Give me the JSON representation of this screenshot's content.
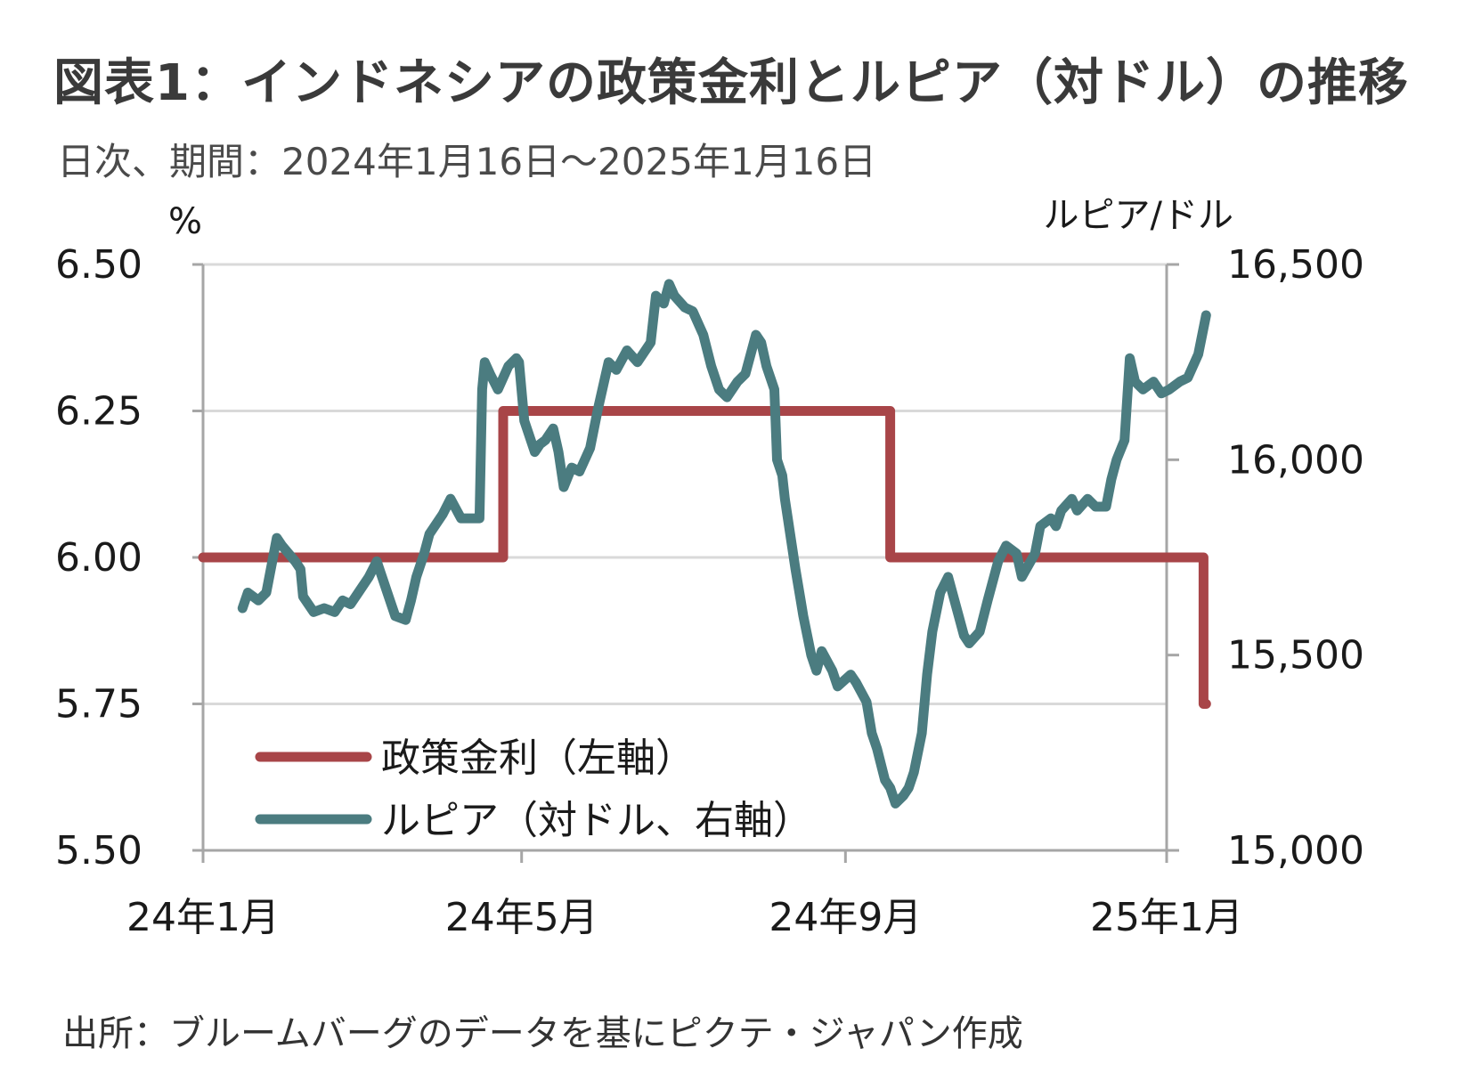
{
  "header": {
    "title": "図表1：インドネシアの政策金利とルピア（対ドル）の推移",
    "subtitle": "日次、期間：2024年1月16日～2025年1月16日"
  },
  "footer": {
    "source": "出所：ブルームバーグのデータを基にピクテ・ジャパン作成"
  },
  "chart_data": {
    "type": "line",
    "title": "図表1：インドネシアの政策金利とルピア（対ドル）の推移",
    "subtitle": "日次、期間：2024年1月16日～2025年1月16日",
    "x_range": [
      "2024-01-16",
      "2025-01-16"
    ],
    "x_ticks": [
      {
        "date": "2024-01-01",
        "label": "24年1月"
      },
      {
        "date": "2024-05-01",
        "label": "24年5月"
      },
      {
        "date": "2024-09-01",
        "label": "24年9月"
      },
      {
        "date": "2025-01-01",
        "label": "25年1月"
      }
    ],
    "y_left": {
      "unit": "%",
      "range": [
        5.5,
        6.5
      ],
      "ticks": [
        5.5,
        5.75,
        6.0,
        6.25,
        6.5
      ],
      "tick_labels": [
        "5.50",
        "5.75",
        "6.00",
        "6.25",
        "6.50"
      ]
    },
    "y_right": {
      "unit": "ルピア/ドル",
      "range": [
        15000,
        16500
      ],
      "ticks": [
        15000,
        15500,
        16000,
        16500
      ],
      "tick_labels": [
        "15,000",
        "15,500",
        "16,000",
        "16,500"
      ]
    },
    "grid": true,
    "legend_position": "bottom-left",
    "series": [
      {
        "name": "政策金利（左軸）",
        "axis": "left",
        "color": "#a84548",
        "points": [
          [
            "2024-01-01",
            6.0
          ],
          [
            "2024-04-24",
            6.0
          ],
          [
            "2024-04-24",
            6.25
          ],
          [
            "2024-09-18",
            6.25
          ],
          [
            "2024-09-18",
            6.0
          ],
          [
            "2025-01-15",
            6.0
          ],
          [
            "2025-01-15",
            5.75
          ],
          [
            "2025-01-16",
            5.75
          ]
        ]
      },
      {
        "name": "ルピア（対ドル、右軸）",
        "axis": "right",
        "color": "#4b7c80",
        "points": [
          [
            "2024-01-16",
            15620
          ],
          [
            "2024-01-18",
            15660
          ],
          [
            "2024-01-22",
            15640
          ],
          [
            "2024-01-25",
            15660
          ],
          [
            "2024-01-29",
            15800
          ],
          [
            "2024-01-31",
            15780
          ],
          [
            "2024-02-05",
            15740
          ],
          [
            "2024-02-07",
            15720
          ],
          [
            "2024-02-08",
            15650
          ],
          [
            "2024-02-12",
            15610
          ],
          [
            "2024-02-16",
            15620
          ],
          [
            "2024-02-20",
            15610
          ],
          [
            "2024-02-23",
            15640
          ],
          [
            "2024-02-26",
            15630
          ],
          [
            "2024-02-29",
            15660
          ],
          [
            "2024-03-04",
            15700
          ],
          [
            "2024-03-07",
            15740
          ],
          [
            "2024-03-11",
            15660
          ],
          [
            "2024-03-14",
            15600
          ],
          [
            "2024-03-18",
            15590
          ],
          [
            "2024-03-20",
            15640
          ],
          [
            "2024-03-22",
            15700
          ],
          [
            "2024-03-25",
            15760
          ],
          [
            "2024-03-27",
            15810
          ],
          [
            "2024-04-01",
            15860
          ],
          [
            "2024-04-04",
            15900
          ],
          [
            "2024-04-08",
            15850
          ],
          [
            "2024-04-12",
            15850
          ],
          [
            "2024-04-15",
            15850
          ],
          [
            "2024-04-16",
            16180
          ],
          [
            "2024-04-17",
            16250
          ],
          [
            "2024-04-19",
            16220
          ],
          [
            "2024-04-22",
            16180
          ],
          [
            "2024-04-24",
            16210
          ],
          [
            "2024-04-26",
            16240
          ],
          [
            "2024-04-29",
            16260
          ],
          [
            "2024-04-30",
            16250
          ],
          [
            "2024-05-02",
            16100
          ],
          [
            "2024-05-06",
            16020
          ],
          [
            "2024-05-08",
            16040
          ],
          [
            "2024-05-10",
            16050
          ],
          [
            "2024-05-13",
            16080
          ],
          [
            "2024-05-15",
            16020
          ],
          [
            "2024-05-17",
            15930
          ],
          [
            "2024-05-20",
            15980
          ],
          [
            "2024-05-23",
            15970
          ],
          [
            "2024-05-27",
            16030
          ],
          [
            "2024-05-30",
            16130
          ],
          [
            "2024-06-03",
            16250
          ],
          [
            "2024-06-06",
            16230
          ],
          [
            "2024-06-10",
            16280
          ],
          [
            "2024-06-14",
            16250
          ],
          [
            "2024-06-19",
            16300
          ],
          [
            "2024-06-21",
            16420
          ],
          [
            "2024-06-24",
            16400
          ],
          [
            "2024-06-26",
            16450
          ],
          [
            "2024-06-28",
            16420
          ],
          [
            "2024-07-02",
            16390
          ],
          [
            "2024-07-05",
            16380
          ],
          [
            "2024-07-09",
            16320
          ],
          [
            "2024-07-12",
            16240
          ],
          [
            "2024-07-15",
            16180
          ],
          [
            "2024-07-18",
            16160
          ],
          [
            "2024-07-22",
            16200
          ],
          [
            "2024-07-25",
            16220
          ],
          [
            "2024-07-29",
            16320
          ],
          [
            "2024-07-31",
            16300
          ],
          [
            "2024-08-02",
            16240
          ],
          [
            "2024-08-05",
            16180
          ],
          [
            "2024-08-06",
            16000
          ],
          [
            "2024-08-08",
            15960
          ],
          [
            "2024-08-09",
            15900
          ],
          [
            "2024-08-13",
            15720
          ],
          [
            "2024-08-15",
            15640
          ],
          [
            "2024-08-16",
            15600
          ],
          [
            "2024-08-19",
            15500
          ],
          [
            "2024-08-21",
            15460
          ],
          [
            "2024-08-23",
            15510
          ],
          [
            "2024-08-27",
            15460
          ],
          [
            "2024-08-29",
            15420
          ],
          [
            "2024-09-03",
            15450
          ],
          [
            "2024-09-05",
            15430
          ],
          [
            "2024-09-09",
            15380
          ],
          [
            "2024-09-11",
            15300
          ],
          [
            "2024-09-13",
            15260
          ],
          [
            "2024-09-16",
            15180
          ],
          [
            "2024-09-18",
            15160
          ],
          [
            "2024-09-20",
            15120
          ],
          [
            "2024-09-23",
            15140
          ],
          [
            "2024-09-25",
            15160
          ],
          [
            "2024-09-27",
            15200
          ],
          [
            "2024-09-30",
            15300
          ],
          [
            "2024-10-02",
            15450
          ],
          [
            "2024-10-04",
            15560
          ],
          [
            "2024-10-07",
            15660
          ],
          [
            "2024-10-10",
            15700
          ],
          [
            "2024-10-14",
            15600
          ],
          [
            "2024-10-16",
            15550
          ],
          [
            "2024-10-18",
            15530
          ],
          [
            "2024-10-22",
            15560
          ],
          [
            "2024-10-25",
            15640
          ],
          [
            "2024-10-29",
            15740
          ],
          [
            "2024-11-01",
            15780
          ],
          [
            "2024-11-05",
            15760
          ],
          [
            "2024-11-07",
            15700
          ],
          [
            "2024-11-12",
            15760
          ],
          [
            "2024-11-14",
            15830
          ],
          [
            "2024-11-18",
            15850
          ],
          [
            "2024-11-20",
            15830
          ],
          [
            "2024-11-22",
            15870
          ],
          [
            "2024-11-26",
            15900
          ],
          [
            "2024-11-28",
            15870
          ],
          [
            "2024-12-02",
            15900
          ],
          [
            "2024-12-05",
            15880
          ],
          [
            "2024-12-09",
            15880
          ],
          [
            "2024-12-11",
            15950
          ],
          [
            "2024-12-13",
            16000
          ],
          [
            "2024-12-16",
            16050
          ],
          [
            "2024-12-18",
            16260
          ],
          [
            "2024-12-20",
            16200
          ],
          [
            "2024-12-23",
            16180
          ],
          [
            "2024-12-27",
            16200
          ],
          [
            "2024-12-30",
            16170
          ],
          [
            "2025-01-02",
            16180
          ],
          [
            "2025-01-06",
            16200
          ],
          [
            "2025-01-09",
            16210
          ],
          [
            "2025-01-13",
            16270
          ],
          [
            "2025-01-16",
            16370
          ]
        ]
      }
    ]
  }
}
